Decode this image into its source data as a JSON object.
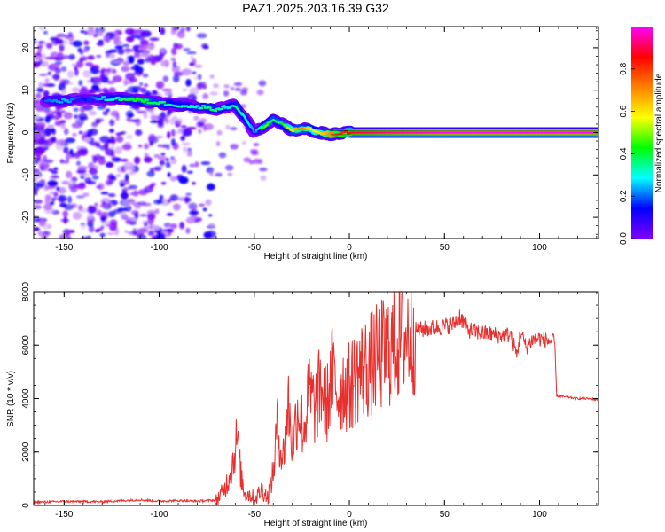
{
  "figure_title": "PAZ1.2025.203.16.39.G32",
  "chart_data": [
    {
      "type": "heatmap",
      "title": "",
      "xlabel": "Height of straight line (km)",
      "ylabel": "Frequency (Hz)",
      "xlim": [
        -166,
        131
      ],
      "ylim": [
        -25,
        25
      ],
      "xticks": [
        -150,
        -100,
        -50,
        0,
        50,
        100
      ],
      "yticks": [
        -20,
        -10,
        0,
        10,
        20
      ],
      "value_description": "Normalized spectral amplitude",
      "colorbar": {
        "label": "Normalized spectral amplitude",
        "range": [
          0,
          1
        ],
        "ticks": [
          0.0,
          0.2,
          0.4,
          0.6,
          0.8
        ],
        "colormap": [
          "#ffffff",
          "#7f00ff",
          "#0000ff",
          "#00ffff",
          "#00ff00",
          "#ffff00",
          "#ff8000",
          "#ff0000",
          "#ff00ff"
        ]
      },
      "main_ridge": {
        "height_km": [
          -160,
          -150,
          -140,
          -120,
          -110,
          -100,
          -90,
          -80,
          -75,
          -70,
          -65,
          -60,
          -55,
          -50,
          -45,
          -40,
          -35,
          -30,
          -25,
          -20,
          -10,
          0,
          20,
          50,
          100,
          131
        ],
        "frequency_hz": [
          7.5,
          7.5,
          8,
          8,
          7.5,
          7,
          6.5,
          6,
          6,
          5.5,
          6,
          6.5,
          3.5,
          0,
          1.5,
          3,
          2,
          0.5,
          1,
          0.5,
          -0.5,
          0,
          0,
          0,
          0,
          0
        ],
        "amplitude": [
          0.3,
          0.35,
          0.25,
          0.45,
          0.5,
          0.45,
          0.4,
          0.4,
          0.45,
          0.45,
          0.35,
          0.45,
          0.4,
          0.3,
          0.55,
          0.45,
          0.5,
          0.7,
          0.75,
          0.6,
          0.75,
          0.9,
          0.95,
          1.0,
          1.0,
          1.0
        ]
      },
      "noise_region_km": [
        -166,
        -72
      ]
    },
    {
      "type": "line",
      "title": "",
      "xlabel": "Height of straight line (km)",
      "ylabel": "SNR (10 * v/v)",
      "xlim": [
        -166,
        131
      ],
      "ylim": [
        0,
        8000
      ],
      "xticks": [
        -150,
        -100,
        -50,
        0,
        50,
        100
      ],
      "yticks": [
        0,
        2000,
        4000,
        6000,
        8000
      ],
      "series": [
        {
          "color": "#e8302e",
          "x": [
            -166,
            -150,
            -130,
            -110,
            -100,
            -90,
            -80,
            -70,
            -67,
            -64,
            -61,
            -59,
            -57,
            -55,
            -52,
            -50,
            -48,
            -46,
            -43,
            -40,
            -38,
            -35,
            -32,
            -30,
            -27,
            -24,
            -21,
            -18,
            -15,
            -12,
            -9,
            -6,
            -3,
            0,
            5,
            10,
            15,
            20,
            25,
            30,
            35,
            40,
            45,
            50,
            55,
            58,
            62,
            66,
            70,
            75,
            80,
            85,
            88,
            90,
            93,
            96,
            100,
            105,
            108,
            109,
            115,
            120,
            125,
            131
          ],
          "y": [
            120,
            150,
            140,
            210,
            160,
            180,
            160,
            200,
            450,
            900,
            1700,
            2600,
            1100,
            450,
            400,
            250,
            400,
            600,
            300,
            1200,
            3000,
            1700,
            3800,
            2200,
            3700,
            2800,
            4200,
            3600,
            4500,
            3700,
            4900,
            4200,
            4500,
            4400,
            5000,
            5200,
            5500,
            5800,
            6100,
            6400,
            6550,
            6600,
            6650,
            6700,
            6800,
            7100,
            6600,
            6500,
            6450,
            6400,
            6350,
            6400,
            5600,
            6500,
            5900,
            6200,
            6250,
            6150,
            6100,
            4100,
            4050,
            4000,
            4000,
            3950
          ]
        }
      ]
    }
  ]
}
